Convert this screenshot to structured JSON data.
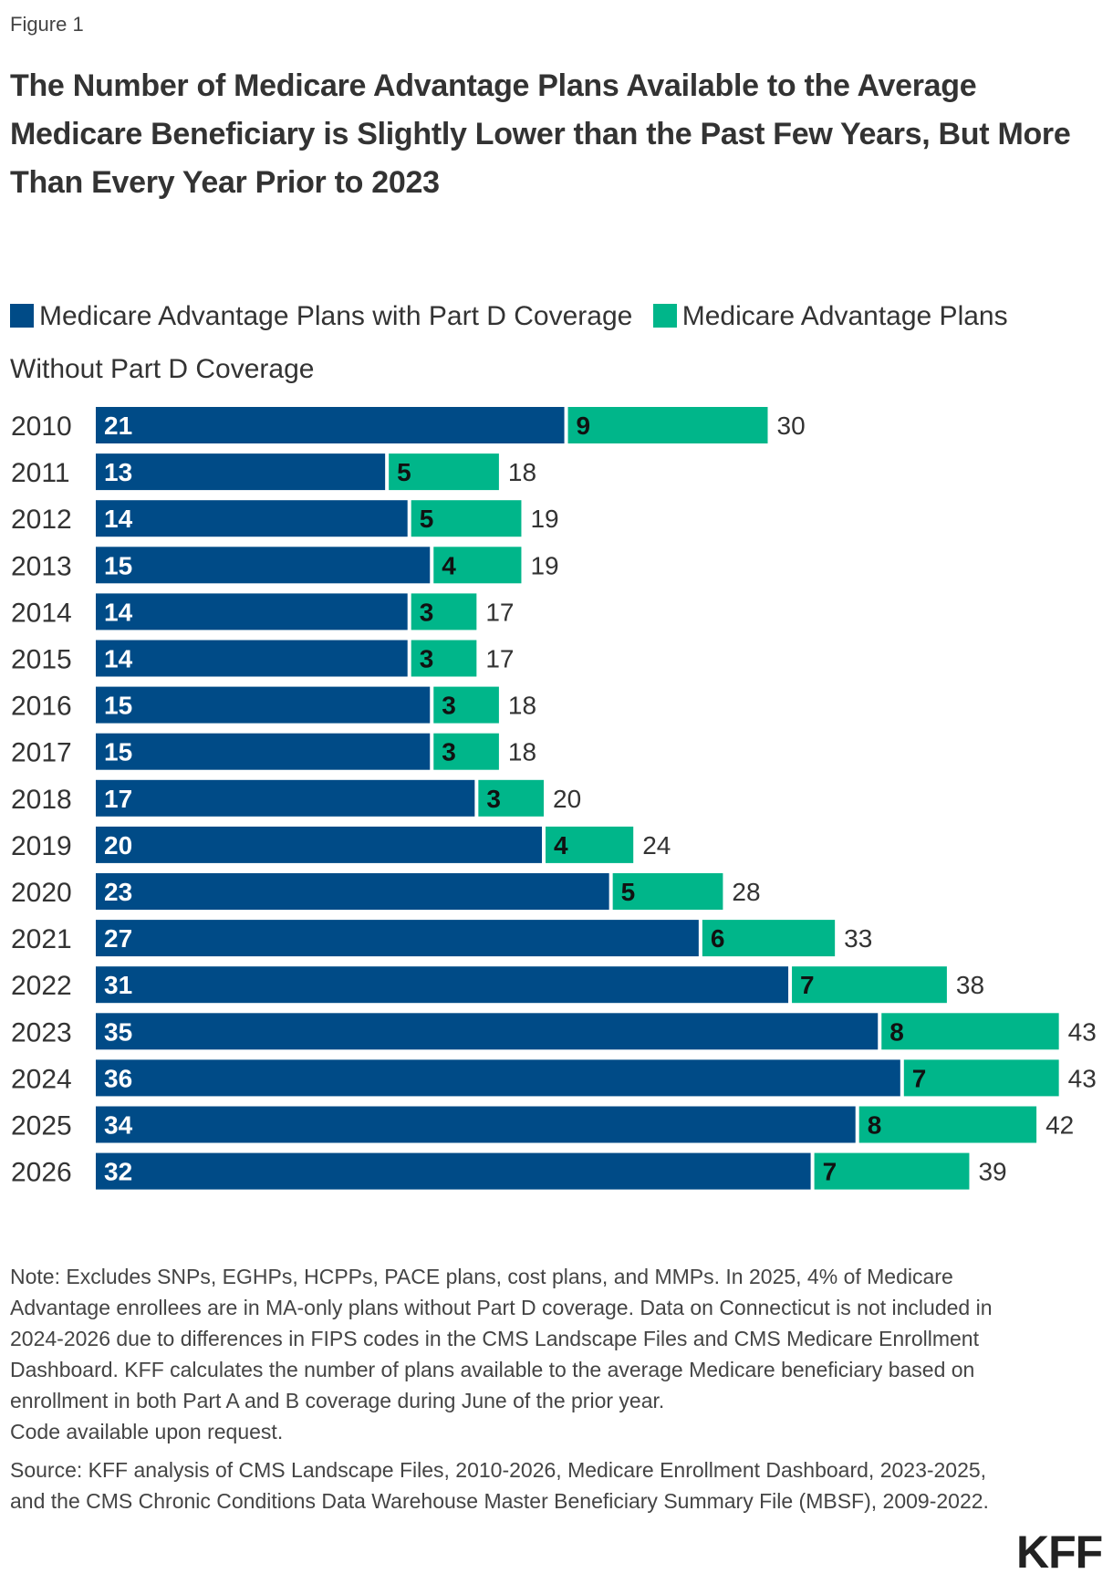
{
  "figure_label": "Figure 1",
  "title": "The Number of Medicare Advantage Plans Available to the Average Medicare Beneficiary is Slightly Lower than the Past Few Years, But More Than Every Year Prior to 2023",
  "colors": {
    "with_part_d": "#004B87",
    "without_part_d": "#00B68A"
  },
  "chart_data": {
    "type": "bar",
    "orientation": "horizontal",
    "stacked": true,
    "categories": [
      "2010",
      "2011",
      "2012",
      "2013",
      "2014",
      "2015",
      "2016",
      "2017",
      "2018",
      "2019",
      "2020",
      "2021",
      "2022",
      "2023",
      "2024",
      "2025",
      "2026"
    ],
    "series": [
      {
        "name": "Medicare Advantage Plans with Part D Coverage",
        "values": [
          21,
          13,
          14,
          15,
          14,
          14,
          15,
          15,
          17,
          20,
          23,
          27,
          31,
          35,
          36,
          34,
          32
        ]
      },
      {
        "name": "Medicare Advantage Plans Without Part D Coverage",
        "values": [
          9,
          5,
          5,
          4,
          3,
          3,
          3,
          3,
          3,
          4,
          5,
          6,
          7,
          8,
          7,
          8,
          7
        ]
      }
    ],
    "totals": [
      30,
      18,
      19,
      19,
      17,
      17,
      18,
      18,
      20,
      24,
      28,
      33,
      38,
      43,
      43,
      42,
      39
    ],
    "legend_position": "top",
    "grid": false,
    "xlim": [
      0,
      43
    ]
  },
  "notes": {
    "note": "Note: Excludes SNPs, EGHPs, HCPPs, PACE plans, cost plans, and MMPs. In 2025, 4% of Medicare Advantage enrollees are in MA-only plans without Part D coverage. Data on Connecticut is not included in 2024-2026 due to differences in FIPS codes in the CMS Landscape Files and CMS Medicare Enrollment Dashboard. KFF calculates the number of plans available to the average Medicare beneficiary based on enrollment in both Part A and B coverage during June of the prior year.",
    "code": "Code available upon request.",
    "source": "Source: KFF analysis of CMS Landscape Files, 2010-2026, Medicare Enrollment Dashboard, 2023-2025, and the CMS Chronic Conditions Data Warehouse Master Beneficiary Summary File (MBSF), 2009-2022."
  },
  "logo": "KFF"
}
